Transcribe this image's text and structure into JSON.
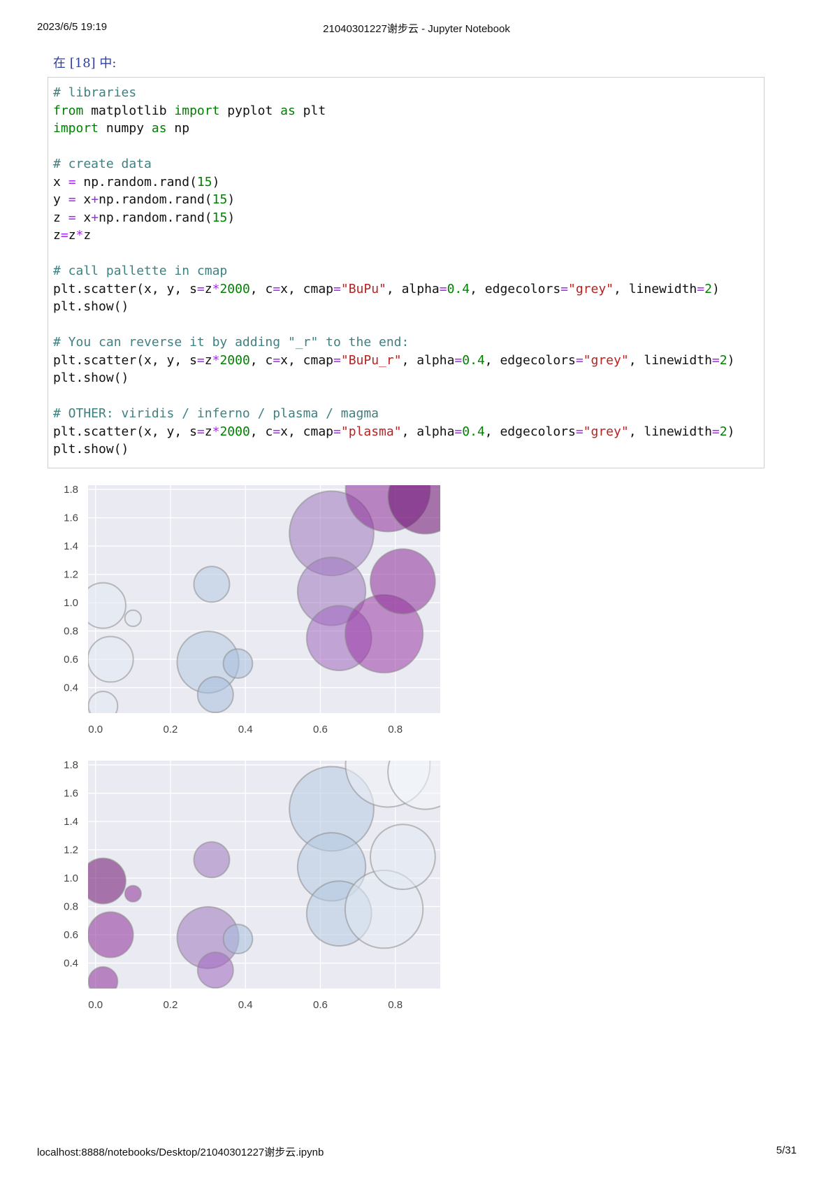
{
  "page_header": {
    "date": "2023/6/5 19:19",
    "title": "21040301227谢步云 - Jupyter Notebook"
  },
  "page_footer": {
    "url": "localhost:8888/notebooks/Desktop/21040301227谢步云.ipynb",
    "page": "5/31"
  },
  "cell": {
    "prompt": "在 [18] 中:",
    "code_lines": [
      [
        {
          "t": "# libraries",
          "c": "cm"
        }
      ],
      [
        {
          "t": "from",
          "c": "kw"
        },
        {
          "t": " matplotlib "
        },
        {
          "t": "import",
          "c": "kw"
        },
        {
          "t": " pyplot "
        },
        {
          "t": "as",
          "c": "kw"
        },
        {
          "t": " plt"
        }
      ],
      [
        {
          "t": "import",
          "c": "kw"
        },
        {
          "t": " numpy "
        },
        {
          "t": "as",
          "c": "kw"
        },
        {
          "t": " np"
        }
      ],
      [],
      [
        {
          "t": "# create data",
          "c": "cm"
        }
      ],
      [
        {
          "t": "x "
        },
        {
          "t": "=",
          "c": "op"
        },
        {
          "t": " np.random.rand("
        },
        {
          "t": "15",
          "c": "nu"
        },
        {
          "t": ")"
        }
      ],
      [
        {
          "t": "y "
        },
        {
          "t": "=",
          "c": "op"
        },
        {
          "t": " x"
        },
        {
          "t": "+",
          "c": "op"
        },
        {
          "t": "np.random.rand("
        },
        {
          "t": "15",
          "c": "nu"
        },
        {
          "t": ")"
        }
      ],
      [
        {
          "t": "z "
        },
        {
          "t": "=",
          "c": "op"
        },
        {
          "t": " x"
        },
        {
          "t": "+",
          "c": "op"
        },
        {
          "t": "np.random.rand("
        },
        {
          "t": "15",
          "c": "nu"
        },
        {
          "t": ")"
        }
      ],
      [
        {
          "t": "z"
        },
        {
          "t": "=",
          "c": "op"
        },
        {
          "t": "z"
        },
        {
          "t": "*",
          "c": "op"
        },
        {
          "t": "z"
        }
      ],
      [],
      [
        {
          "t": "# call pallette in cmap",
          "c": "cm"
        }
      ],
      [
        {
          "t": "plt.scatter(x, y, s"
        },
        {
          "t": "=",
          "c": "op"
        },
        {
          "t": "z"
        },
        {
          "t": "*",
          "c": "op"
        },
        {
          "t": "2000",
          "c": "nu"
        },
        {
          "t": ", c"
        },
        {
          "t": "=",
          "c": "op"
        },
        {
          "t": "x, cmap"
        },
        {
          "t": "=",
          "c": "op"
        },
        {
          "t": "\"BuPu\"",
          "c": "st"
        },
        {
          "t": ", alpha"
        },
        {
          "t": "=",
          "c": "op"
        },
        {
          "t": "0.4",
          "c": "nu"
        },
        {
          "t": ", edgecolors"
        },
        {
          "t": "=",
          "c": "op"
        },
        {
          "t": "\"grey\"",
          "c": "st"
        },
        {
          "t": ", linewidth"
        },
        {
          "t": "=",
          "c": "op"
        },
        {
          "t": "2",
          "c": "nu"
        },
        {
          "t": ")"
        }
      ],
      [
        {
          "t": "plt.show()"
        }
      ],
      [],
      [
        {
          "t": "# You can reverse it by adding \"_r\" to the end:",
          "c": "cm"
        }
      ],
      [
        {
          "t": "plt.scatter(x, y, s"
        },
        {
          "t": "=",
          "c": "op"
        },
        {
          "t": "z"
        },
        {
          "t": "*",
          "c": "op"
        },
        {
          "t": "2000",
          "c": "nu"
        },
        {
          "t": ", c"
        },
        {
          "t": "=",
          "c": "op"
        },
        {
          "t": "x, cmap"
        },
        {
          "t": "=",
          "c": "op"
        },
        {
          "t": "\"BuPu_r\"",
          "c": "st"
        },
        {
          "t": ", alpha"
        },
        {
          "t": "=",
          "c": "op"
        },
        {
          "t": "0.4",
          "c": "nu"
        },
        {
          "t": ", edgecolors"
        },
        {
          "t": "=",
          "c": "op"
        },
        {
          "t": "\"grey\"",
          "c": "st"
        },
        {
          "t": ", linewidth"
        },
        {
          "t": "=",
          "c": "op"
        },
        {
          "t": "2",
          "c": "nu"
        },
        {
          "t": ")"
        }
      ],
      [
        {
          "t": "plt.show()"
        }
      ],
      [],
      [
        {
          "t": "# OTHER: viridis / inferno / plasma / magma",
          "c": "cm"
        }
      ],
      [
        {
          "t": "plt.scatter(x, y, s"
        },
        {
          "t": "=",
          "c": "op"
        },
        {
          "t": "z"
        },
        {
          "t": "*",
          "c": "op"
        },
        {
          "t": "2000",
          "c": "nu"
        },
        {
          "t": ", c"
        },
        {
          "t": "=",
          "c": "op"
        },
        {
          "t": "x, cmap"
        },
        {
          "t": "=",
          "c": "op"
        },
        {
          "t": "\"plasma\"",
          "c": "st"
        },
        {
          "t": ", alpha"
        },
        {
          "t": "=",
          "c": "op"
        },
        {
          "t": "0.4",
          "c": "nu"
        },
        {
          "t": ", edgecolors"
        },
        {
          "t": "=",
          "c": "op"
        },
        {
          "t": "\"grey\"",
          "c": "st"
        },
        {
          "t": ", linewidth"
        },
        {
          "t": "=",
          "c": "op"
        },
        {
          "t": "2",
          "c": "nu"
        },
        {
          "t": ")"
        }
      ],
      [
        {
          "t": "plt.show()"
        }
      ]
    ]
  },
  "chart_data": [
    {
      "type": "scatter",
      "colormap": "BuPu",
      "alpha": 0.4,
      "edge_color": "grey",
      "background_color": "#eaeaf2",
      "grid": true,
      "xlim": [
        -0.02,
        0.92
      ],
      "ylim": [
        0.22,
        1.83
      ],
      "xticks": [
        "0.0",
        "0.2",
        "0.4",
        "0.6",
        "0.8"
      ],
      "yticks": [
        "0.4",
        "0.6",
        "0.8",
        "1.0",
        "1.2",
        "1.4",
        "1.6",
        "1.8"
      ],
      "points": [
        {
          "x": 0.02,
          "y": 0.98,
          "s": 1.4,
          "c": "#e2e9f2"
        },
        {
          "x": 0.1,
          "y": 0.89,
          "s": 0.5,
          "c": "#e2e9f2"
        },
        {
          "x": 0.04,
          "y": 0.6,
          "s": 1.4,
          "c": "#e2e9f2"
        },
        {
          "x": 0.02,
          "y": 0.27,
          "s": 0.9,
          "c": "#e2e9f2"
        },
        {
          "x": 0.31,
          "y": 1.13,
          "s": 1.1,
          "c": "#b4c9e0"
        },
        {
          "x": 0.3,
          "y": 0.58,
          "s": 1.9,
          "c": "#b4c9e0"
        },
        {
          "x": 0.38,
          "y": 0.57,
          "s": 0.9,
          "c": "#a8bfdc"
        },
        {
          "x": 0.32,
          "y": 0.35,
          "s": 1.1,
          "c": "#a8bfdc"
        },
        {
          "x": 0.63,
          "y": 1.49,
          "s": 2.6,
          "c": "#9f78c0"
        },
        {
          "x": 0.63,
          "y": 1.08,
          "s": 2.1,
          "c": "#9f78c0"
        },
        {
          "x": 0.65,
          "y": 0.75,
          "s": 2.0,
          "c": "#a068c0"
        },
        {
          "x": 0.77,
          "y": 0.78,
          "s": 2.4,
          "c": "#9b3aa5"
        },
        {
          "x": 0.82,
          "y": 1.15,
          "s": 2.0,
          "c": "#8c2e98"
        },
        {
          "x": 0.78,
          "y": 1.8,
          "s": 2.6,
          "c": "#8c2e98"
        },
        {
          "x": 0.88,
          "y": 1.75,
          "s": 2.3,
          "c": "#6b0e6f"
        }
      ]
    },
    {
      "type": "scatter",
      "colormap": "BuPu_r",
      "alpha": 0.4,
      "edge_color": "grey",
      "background_color": "#eaeaf2",
      "grid": true,
      "xlim": [
        -0.02,
        0.92
      ],
      "ylim": [
        0.22,
        1.83
      ],
      "xticks": [
        "0.0",
        "0.2",
        "0.4",
        "0.6",
        "0.8"
      ],
      "yticks": [
        "0.4",
        "0.6",
        "0.8",
        "1.0",
        "1.2",
        "1.4",
        "1.6",
        "1.8"
      ],
      "points": [
        {
          "x": 0.02,
          "y": 0.98,
          "s": 1.4,
          "c": "#6b0e6f"
        },
        {
          "x": 0.1,
          "y": 0.89,
          "s": 0.5,
          "c": "#8c2e98"
        },
        {
          "x": 0.04,
          "y": 0.6,
          "s": 1.4,
          "c": "#8c2e98"
        },
        {
          "x": 0.02,
          "y": 0.27,
          "s": 0.9,
          "c": "#8c2e98"
        },
        {
          "x": 0.31,
          "y": 1.13,
          "s": 1.1,
          "c": "#9f78c0"
        },
        {
          "x": 0.3,
          "y": 0.58,
          "s": 1.9,
          "c": "#9f78c0"
        },
        {
          "x": 0.38,
          "y": 0.57,
          "s": 0.9,
          "c": "#a8bfdc"
        },
        {
          "x": 0.32,
          "y": 0.35,
          "s": 1.1,
          "c": "#a068c0"
        },
        {
          "x": 0.63,
          "y": 1.49,
          "s": 2.6,
          "c": "#b4c9e0"
        },
        {
          "x": 0.63,
          "y": 1.08,
          "s": 2.1,
          "c": "#b4c9e0"
        },
        {
          "x": 0.65,
          "y": 0.75,
          "s": 2.0,
          "c": "#b4c9e0"
        },
        {
          "x": 0.77,
          "y": 0.78,
          "s": 2.4,
          "c": "#e2e9f2"
        },
        {
          "x": 0.82,
          "y": 1.15,
          "s": 2.0,
          "c": "#e2e9f2"
        },
        {
          "x": 0.78,
          "y": 1.8,
          "s": 2.6,
          "c": "#eef2f8"
        },
        {
          "x": 0.88,
          "y": 1.75,
          "s": 2.3,
          "c": "#f3f5fa"
        }
      ]
    }
  ]
}
